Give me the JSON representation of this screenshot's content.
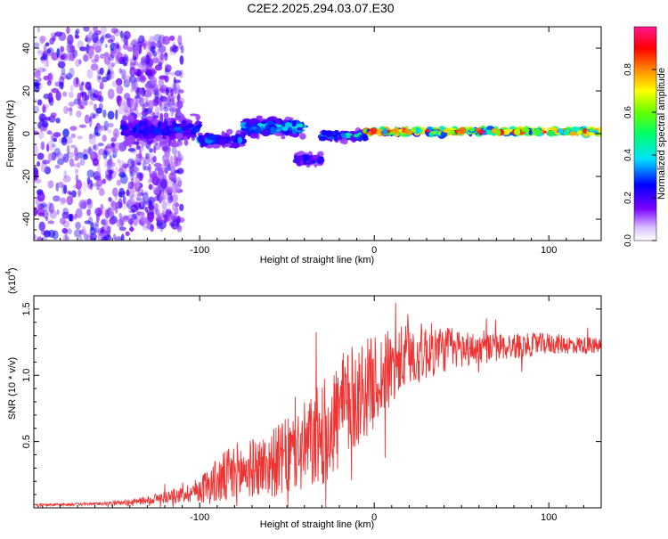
{
  "title": "C2E2.2025.294.03.07.E30",
  "colors": {
    "spectro_bg": "#ffffff",
    "snr_line": "#ee3333",
    "axis": "#000000"
  },
  "chart_data": [
    {
      "type": "heatmap",
      "title": "C2E2.2025.294.03.07.E30",
      "xlabel": "Height of straight line (km)",
      "ylabel": "Frequency (Hz)",
      "xlim": [
        -195,
        130
      ],
      "ylim": [
        -50,
        50
      ],
      "x_ticks": [
        -100,
        0,
        100
      ],
      "y_ticks": [
        -40,
        -20,
        0,
        20,
        40
      ],
      "colorbar": {
        "label": "Normalized spectral amplitude",
        "range": [
          0,
          1
        ],
        "ticks": [
          "0.0",
          "0.2",
          "0.4",
          "0.6",
          "0.8"
        ],
        "tick_values": [
          0,
          0.2,
          0.4,
          0.6,
          0.8
        ],
        "colors": [
          "#ffffff",
          "#7a00ff",
          "#0000ff",
          "#00e0ff",
          "#00ff00",
          "#ffff00",
          "#ff6600",
          "#ff0000",
          "#ff1493"
        ]
      },
      "regions": [
        {
          "x_start": -195,
          "x_end": -140,
          "description_value": "broadband scattered energy",
          "freq_spread": 50,
          "amp_max": 0.18
        },
        {
          "x_start": -140,
          "x_end": -110,
          "freq_spread": 45,
          "amp_max": 0.15
        },
        {
          "x_start": -145,
          "x_end": -100,
          "freq_center": 2,
          "freq_spread": 8,
          "amp_max": 0.35
        },
        {
          "x_start": -100,
          "x_end": -75,
          "freq_center": -3,
          "freq_spread": 5,
          "amp_max": 0.4
        },
        {
          "x_start": -75,
          "x_end": -40,
          "freq_center": 3,
          "freq_spread": 6,
          "amp_max": 0.5
        },
        {
          "x_start": -45,
          "x_end": -30,
          "freq_center": -12,
          "freq_spread": 4,
          "amp_max": 0.35
        },
        {
          "x_start": -30,
          "x_end": -5,
          "freq_center": -1,
          "freq_spread": 3,
          "amp_max": 0.5
        },
        {
          "x_start": -5,
          "x_end": 130,
          "freq_center": 1,
          "freq_spread": 2,
          "amp_max": 1.0
        }
      ]
    },
    {
      "type": "line",
      "xlabel": "Height of straight line (km)",
      "ylabel": "SNR (10 * v/v)",
      "multiplier_label": "(x10",
      "multiplier_exp": "4",
      "multiplier_close": ")",
      "xlim": [
        -195,
        130
      ],
      "ylim": [
        0,
        1.6
      ],
      "x_ticks": [
        -100,
        0,
        100
      ],
      "y_ticks": [
        0.5,
        1.0,
        1.5
      ],
      "y_tick_labels": [
        "0.5",
        "1.0",
        "1.5"
      ],
      "series": [
        {
          "name": "SNR",
          "envelope": {
            "x": [
              -195,
              -160,
              -140,
              -125,
              -110,
              -100,
              -90,
              -80,
              -70,
              -60,
              -50,
              -40,
              -30,
              -20,
              -10,
              0,
              10,
              20,
              30,
              40,
              60,
              80,
              100,
              130
            ],
            "mean": [
              0.02,
              0.03,
              0.04,
              0.07,
              0.1,
              0.14,
              0.2,
              0.25,
              0.3,
              0.33,
              0.38,
              0.45,
              0.55,
              0.7,
              0.85,
              0.95,
              1.05,
              1.15,
              1.18,
              1.2,
              1.2,
              1.22,
              1.24,
              1.22
            ],
            "amp": [
              0.01,
              0.01,
              0.02,
              0.04,
              0.06,
              0.1,
              0.18,
              0.25,
              0.22,
              0.25,
              0.3,
              0.35,
              0.4,
              0.45,
              0.4,
              0.35,
              0.3,
              0.25,
              0.22,
              0.18,
              0.12,
              0.1,
              0.08,
              0.06
            ]
          }
        }
      ]
    }
  ]
}
